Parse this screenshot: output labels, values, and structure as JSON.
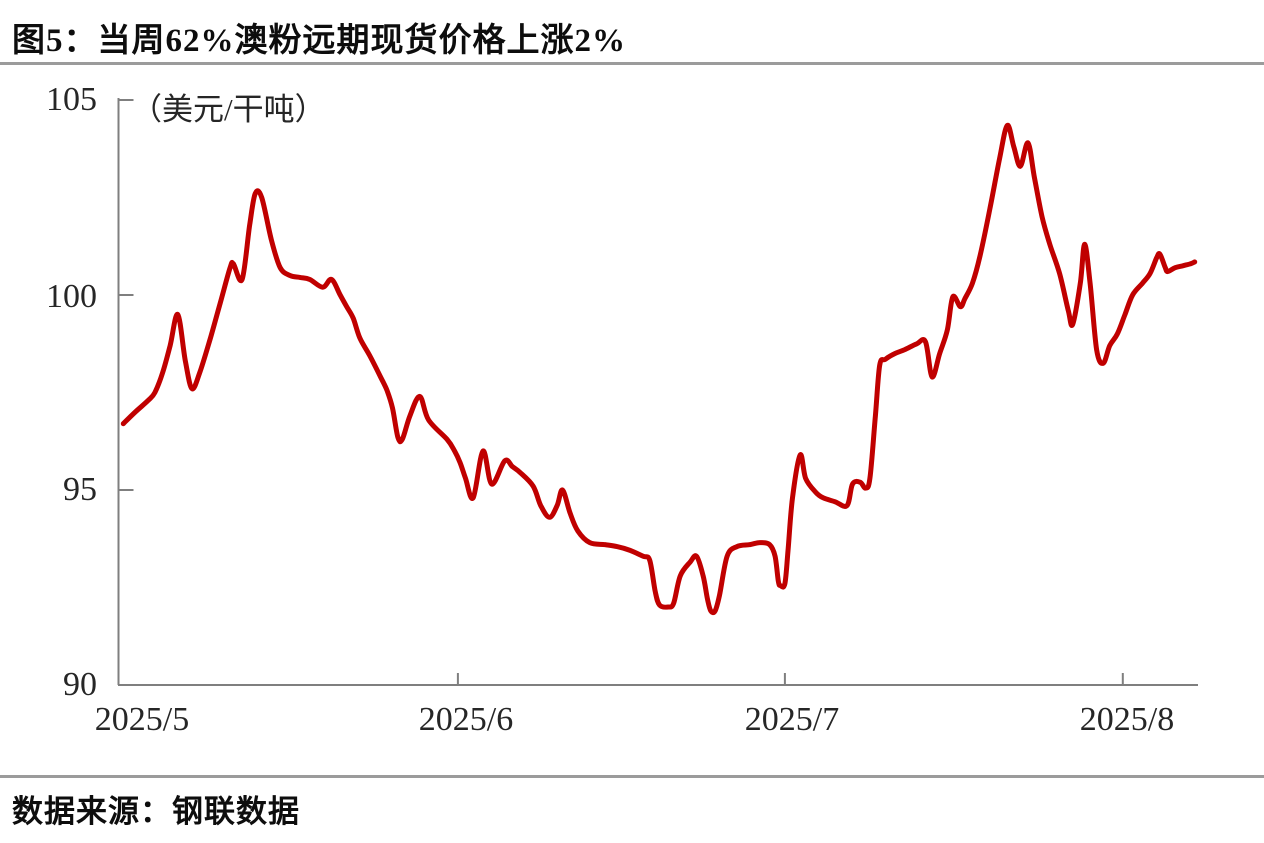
{
  "page": {
    "title": "图5：当周62%澳粉远期现货价格上涨2%",
    "source": "数据来源：钢联数据"
  },
  "colors": {
    "line": "#c00000",
    "axis": "#7f7f7f",
    "separator": "#9b9b9b",
    "text": "#262626"
  },
  "chart_data": {
    "type": "line",
    "title": "当周62%澳粉远期现货价格上涨2%",
    "unit_label": "（美元/干吨）",
    "grid": false,
    "legend": "none",
    "y_axis": {
      "min": 90,
      "max": 105,
      "tick_values": [
        105,
        100,
        95,
        90
      ],
      "tick_labels": [
        "105",
        "100",
        "95",
        "90"
      ]
    },
    "x_axis": {
      "type": "time-daily",
      "start_date": "2025/5/1",
      "end_date": "2025/8/8",
      "tick_labels": [
        "2025/5",
        "2025/6",
        "2025/7",
        "2025/8"
      ],
      "tick_day_offsets": [
        0,
        31,
        61,
        92
      ]
    },
    "series": [
      {
        "name": "62%澳粉远期现货价格",
        "color": "#c00000",
        "points_day_value": [
          [
            0.3,
            96.7
          ],
          [
            1.4,
            97.0
          ],
          [
            2.6,
            97.3
          ],
          [
            3.2,
            97.5
          ],
          [
            3.9,
            98.0
          ],
          [
            4.6,
            98.7
          ],
          [
            5.3,
            99.5
          ],
          [
            6.0,
            98.3
          ],
          [
            6.6,
            97.6
          ],
          [
            7.3,
            98.0
          ],
          [
            8.3,
            98.9
          ],
          [
            9.2,
            99.8
          ],
          [
            10.1,
            100.7
          ],
          [
            10.4,
            100.8
          ],
          [
            11.2,
            100.4
          ],
          [
            11.9,
            101.8
          ],
          [
            12.4,
            102.6
          ],
          [
            13.0,
            102.5
          ],
          [
            13.9,
            101.4
          ],
          [
            14.7,
            100.7
          ],
          [
            15.6,
            100.5
          ],
          [
            16.5,
            100.45
          ],
          [
            17.4,
            100.4
          ],
          [
            18.6,
            100.2
          ],
          [
            19.4,
            100.4
          ],
          [
            20.2,
            100.0
          ],
          [
            20.8,
            99.7
          ],
          [
            21.4,
            99.4
          ],
          [
            22.0,
            98.9
          ],
          [
            22.9,
            98.45
          ],
          [
            23.9,
            97.9
          ],
          [
            24.5,
            97.55
          ],
          [
            25.0,
            97.1
          ],
          [
            25.5,
            96.35
          ],
          [
            25.9,
            96.3
          ],
          [
            26.6,
            96.9
          ],
          [
            27.5,
            97.4
          ],
          [
            28.3,
            96.8
          ],
          [
            30.0,
            96.3
          ],
          [
            30.7,
            96.0
          ],
          [
            31.2,
            95.7
          ],
          [
            31.7,
            95.3
          ],
          [
            32.4,
            94.8
          ],
          [
            33.3,
            96.0
          ],
          [
            34.1,
            95.15
          ],
          [
            35.3,
            95.75
          ],
          [
            36.0,
            95.6
          ],
          [
            36.7,
            95.45
          ],
          [
            37.9,
            95.1
          ],
          [
            38.6,
            94.6
          ],
          [
            39.4,
            94.3
          ],
          [
            40.1,
            94.6
          ],
          [
            40.6,
            95.0
          ],
          [
            41.3,
            94.4
          ],
          [
            42.0,
            93.95
          ],
          [
            43.1,
            93.65
          ],
          [
            44.5,
            93.6
          ],
          [
            45.6,
            93.55
          ],
          [
            46.8,
            93.45
          ],
          [
            48.0,
            93.3
          ],
          [
            48.6,
            93.2
          ],
          [
            49.1,
            92.4
          ],
          [
            49.5,
            92.05
          ],
          [
            50.3,
            92.0
          ],
          [
            50.8,
            92.1
          ],
          [
            51.4,
            92.8
          ],
          [
            52.3,
            93.15
          ],
          [
            52.9,
            93.3
          ],
          [
            53.5,
            92.8
          ],
          [
            53.9,
            92.2
          ],
          [
            54.2,
            91.9
          ],
          [
            54.6,
            91.9
          ],
          [
            55.0,
            92.3
          ],
          [
            55.7,
            93.3
          ],
          [
            56.6,
            93.55
          ],
          [
            57.8,
            93.6
          ],
          [
            58.7,
            93.65
          ],
          [
            59.6,
            93.6
          ],
          [
            60.1,
            93.3
          ],
          [
            60.4,
            92.65
          ],
          [
            60.6,
            92.55
          ],
          [
            61.0,
            92.6
          ],
          [
            61.3,
            93.5
          ],
          [
            61.7,
            94.8
          ],
          [
            62.4,
            95.9
          ],
          [
            62.9,
            95.3
          ],
          [
            63.8,
            94.95
          ],
          [
            64.5,
            94.8
          ],
          [
            65.6,
            94.7
          ],
          [
            66.7,
            94.6
          ],
          [
            67.2,
            95.15
          ],
          [
            67.9,
            95.2
          ],
          [
            68.4,
            95.05
          ],
          [
            68.8,
            95.3
          ],
          [
            69.3,
            96.9
          ],
          [
            69.7,
            98.2
          ],
          [
            70.2,
            98.35
          ],
          [
            71.1,
            98.5
          ],
          [
            72.0,
            98.6
          ],
          [
            73.1,
            98.75
          ],
          [
            73.9,
            98.8
          ],
          [
            74.5,
            97.9
          ],
          [
            75.2,
            98.5
          ],
          [
            75.9,
            99.1
          ],
          [
            76.4,
            99.95
          ],
          [
            77.1,
            99.7
          ],
          [
            77.5,
            99.9
          ],
          [
            78.2,
            100.3
          ],
          [
            78.9,
            101.0
          ],
          [
            79.8,
            102.2
          ],
          [
            80.7,
            103.5
          ],
          [
            81.4,
            104.35
          ],
          [
            82.0,
            103.8
          ],
          [
            82.6,
            103.3
          ],
          [
            83.3,
            103.9
          ],
          [
            83.9,
            103.0
          ],
          [
            84.6,
            102.0
          ],
          [
            85.3,
            101.3
          ],
          [
            86.2,
            100.55
          ],
          [
            87.0,
            99.6
          ],
          [
            87.4,
            99.25
          ],
          [
            88.1,
            100.3
          ],
          [
            88.5,
            101.3
          ],
          [
            89.0,
            100.3
          ],
          [
            89.6,
            98.6
          ],
          [
            90.2,
            98.25
          ],
          [
            90.8,
            98.7
          ],
          [
            91.5,
            99.0
          ],
          [
            92.2,
            99.5
          ],
          [
            92.9,
            100.0
          ],
          [
            93.8,
            100.3
          ],
          [
            94.5,
            100.55
          ],
          [
            95.1,
            100.95
          ],
          [
            95.4,
            101.05
          ],
          [
            95.9,
            100.7
          ],
          [
            96.1,
            100.6
          ],
          [
            96.8,
            100.7
          ],
          [
            97.5,
            100.75
          ],
          [
            98.2,
            100.8
          ],
          [
            98.6,
            100.85
          ]
        ]
      }
    ]
  }
}
